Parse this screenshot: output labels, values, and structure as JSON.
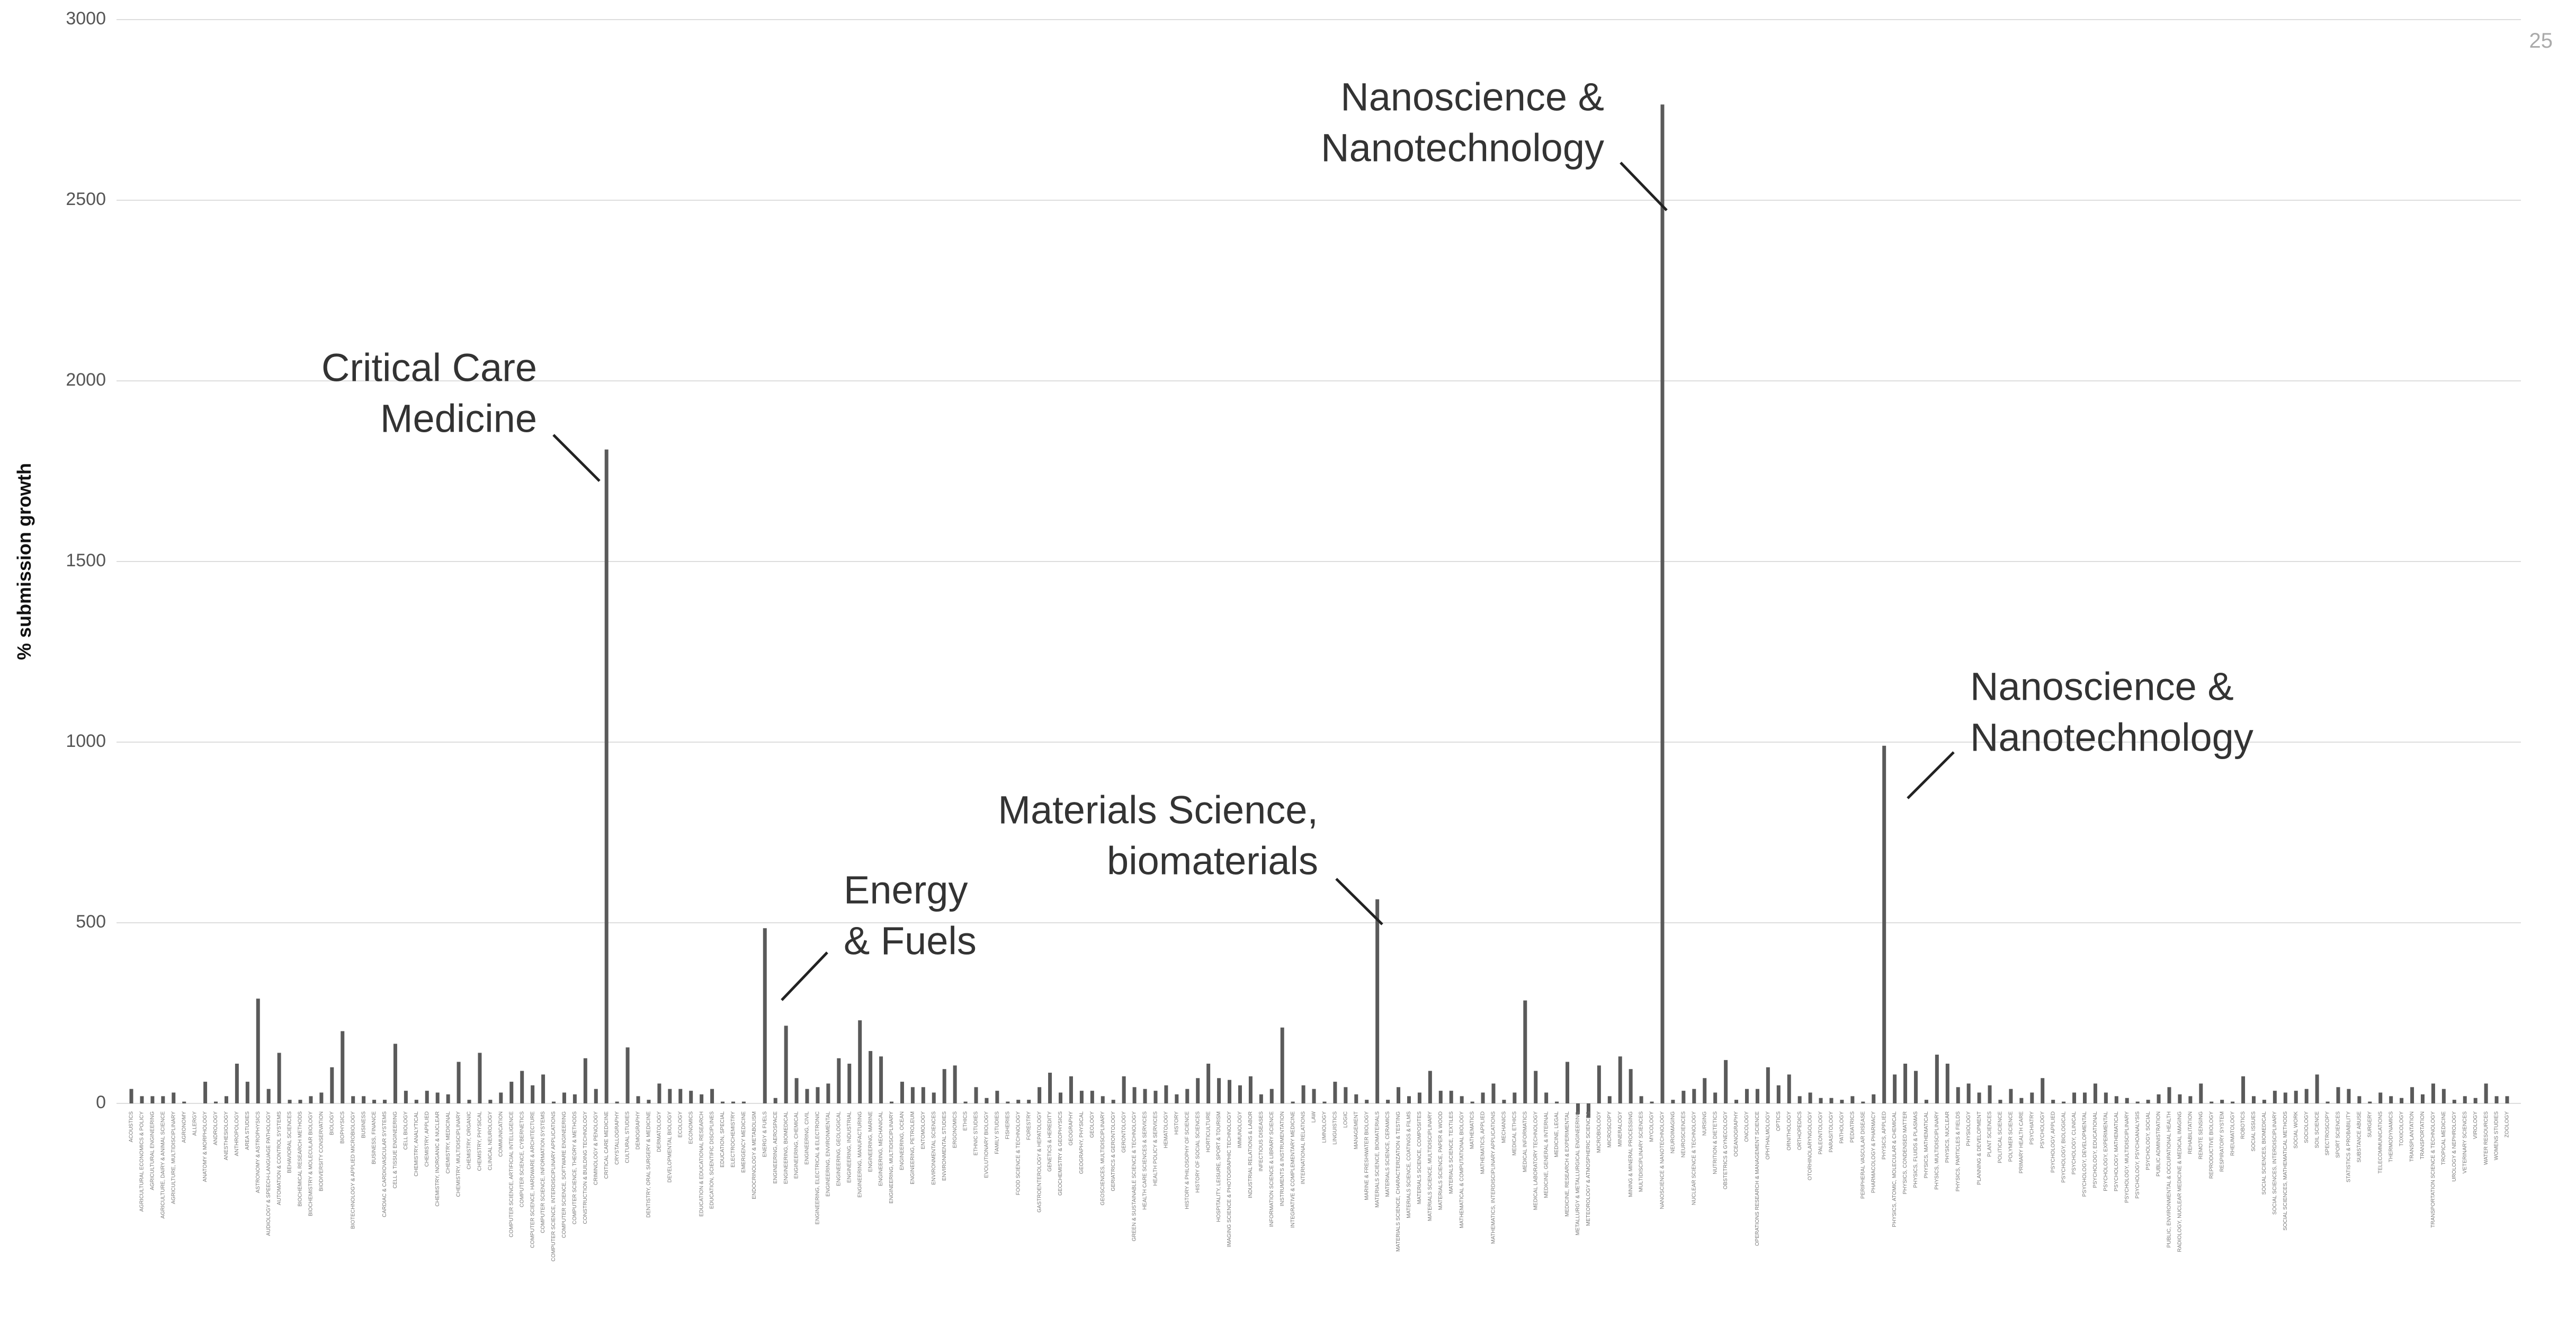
{
  "chart_data": {
    "type": "bar",
    "page_number": "25",
    "y_axis_label": "% submission growth",
    "color": "#5a5a5a",
    "grid": true,
    "ylim": [
      0,
      3000
    ],
    "yticks": [
      0,
      500,
      1000,
      1500,
      2000,
      2500,
      3000
    ],
    "annotations": [
      {
        "lines": [
          "Critical Care",
          "Medicine"
        ]
      },
      {
        "lines": [
          "Energy",
          "& Fuels"
        ]
      },
      {
        "lines": [
          "Materials Science,",
          "biomaterials"
        ]
      },
      {
        "lines": [
          "Nanoscience &",
          "Nanotechnology"
        ]
      },
      {
        "lines": [
          "Nanoscience &",
          "Nanotechnology"
        ]
      }
    ],
    "categories": [
      "ACOUSTICS",
      "AGRICULTURAL ECONOMICS & POLICY",
      "AGRICULTURAL ENGINEERING",
      "AGRICULTURE, DAIRY & ANIMAL SCIENCE",
      "AGRICULTURE, MULTIDISCIPLINARY",
      "AGRONOMY",
      "ALLERGY",
      "ANATOMY & MORPHOLOGY",
      "ANDROLOGY",
      "ANESTHESIOLOGY",
      "ANTHROPOLOGY",
      "AREA STUDIES",
      "ASTRONOMY & ASTROPHYSICS",
      "AUDIOLOGY & SPEECH-LANGUAGE PATHOLOGY",
      "AUTOMATION & CONTROL SYSTEMS",
      "BEHAVIORAL SCIENCES",
      "BIOCHEMICAL RESEARCH METHODS",
      "BIOCHEMISTRY & MOLECULAR BIOLOGY",
      "BIODIVERSITY CONSERVATION",
      "BIOLOGY",
      "BIOPHYSICS",
      "BIOTECHNOLOGY & APPLIED MICROBIOLOGY",
      "BUSINESS",
      "BUSINESS, FINANCE",
      "CARDIAC & CARDIOVASCULAR SYSTEMS",
      "CELL & TISSUE ENGINEERING",
      "CELL BIOLOGY",
      "CHEMISTRY, ANALYTICAL",
      "CHEMISTRY, APPLIED",
      "CHEMISTRY, INORGANIC & NUCLEAR",
      "CHEMISTRY, MEDICINAL",
      "CHEMISTRY, MULTIDISCIPLINARY",
      "CHEMISTRY, ORGANIC",
      "CHEMISTRY, PHYSICAL",
      "CLINICAL NEUROLOGY",
      "COMMUNICATION",
      "COMPUTER SCIENCE, ARTIFICIAL INTELLIGENCE",
      "COMPUTER SCIENCE, CYBERNETICS",
      "COMPUTER SCIENCE, HARDWARE & ARCHITECTURE",
      "COMPUTER SCIENCE, INFORMATION SYSTEMS",
      "COMPUTER SCIENCE, INTERDISCIPLINARY APPLICATIONS",
      "COMPUTER SCIENCE, SOFTWARE ENGINEERING",
      "COMPUTER SCIENCE, THEORY & METHODS",
      "CONSTRUCTION & BUILDING TECHNOLOGY",
      "CRIMINOLOGY & PENOLOGY",
      "CRITICAL CARE MEDICINE",
      "CRYSTALLOGRAPHY",
      "CULTURAL STUDIES",
      "DEMOGRAPHY",
      "DENTISTRY, ORAL SURGERY & MEDICINE",
      "DERMATOLOGY",
      "DEVELOPMENTAL BIOLOGY",
      "ECOLOGY",
      "ECONOMICS",
      "EDUCATION & EDUCATIONAL RESEARCH",
      "EDUCATION, SCIENTIFIC DISCIPLINES",
      "EDUCATION, SPECIAL",
      "ELECTROCHEMISTRY",
      "EMERGENCY MEDICINE",
      "ENDOCRINOLOGY & METABOLISM",
      "ENERGY & FUELS",
      "ENGINEERING, AEROSPACE",
      "ENGINEERING, BIOMEDICAL",
      "ENGINEERING, CHEMICAL",
      "ENGINEERING, CIVIL",
      "ENGINEERING, ELECTRICAL & ELECTRONIC",
      "ENGINEERING, ENVIRONMENTAL",
      "ENGINEERING, GEOLOGICAL",
      "ENGINEERING, INDUSTRIAL",
      "ENGINEERING, MANUFACTURING",
      "ENGINEERING, MARINE",
      "ENGINEERING, MECHANICAL",
      "ENGINEERING, MULTIDISCIPLINARY",
      "ENGINEERING, OCEAN",
      "ENGINEERING, PETROLEUM",
      "ENTOMOLOGY",
      "ENVIRONMENTAL SCIENCES",
      "ENVIRONMENTAL STUDIES",
      "ERGONOMICS",
      "ETHICS",
      "ETHNIC STUDIES",
      "EVOLUTIONARY BIOLOGY",
      "FAMILY STUDIES",
      "FISHERIES",
      "FOOD SCIENCE & TECHNOLOGY",
      "FORESTRY",
      "GASTROENTEROLOGY & HEPATOLOGY",
      "GENETICS & HEREDITY",
      "GEOCHEMISTRY & GEOPHYSICS",
      "GEOGRAPHY",
      "GEOGRAPHY, PHYSICAL",
      "GEOLOGY",
      "GEOSCIENCES, MULTIDISCIPLINARY",
      "GERIATRICS & GERONTOLOGY",
      "GERONTOLOGY",
      "GREEN & SUSTAINABLE SCIENCE & TECHNOLOGY",
      "HEALTH CARE SCIENCES & SERVICES",
      "HEALTH POLICY & SERVICES",
      "HEMATOLOGY",
      "HISTORY",
      "HISTORY & PHILOSOPHY OF SCIENCE",
      "HISTORY OF SOCIAL SCIENCES",
      "HORTICULTURE",
      "HOSPITALITY, LEISURE, SPORT & TOURISM",
      "IMAGING SCIENCE & PHOTOGRAPHIC TECHNOLOGY",
      "IMMUNOLOGY",
      "INDUSTRIAL RELATIONS & LABOR",
      "INFECTIOUS DISEASES",
      "INFORMATION SCIENCE & LIBRARY SCIENCE",
      "INSTRUMENTS & INSTRUMENTATION",
      "INTEGRATIVE & COMPLEMENTARY MEDICINE",
      "INTERNATIONAL RELATIONS",
      "LAW",
      "LIMNOLOGY",
      "LINGUISTICS",
      "LOGIC",
      "MANAGEMENT",
      "MARINE & FRESHWATER BIOLOGY",
      "MATERIALS SCIENCE, BIOMATERIALS",
      "MATERIALS SCIENCE, CERAMICS",
      "MATERIALS SCIENCE, CHARACTERIZATION & TESTING",
      "MATERIALS SCIENCE, COATINGS & FILMS",
      "MATERIALS SCIENCE, COMPOSITES",
      "MATERIALS SCIENCE, MULTIDISCIPLINARY",
      "MATERIALS SCIENCE, PAPER & WOOD",
      "MATERIALS SCIENCE, TEXTILES",
      "MATHEMATICAL & COMPUTATIONAL BIOLOGY",
      "MATHEMATICS",
      "MATHEMATICS, APPLIED",
      "MATHEMATICS, INTERDISCIPLINARY APPLICATIONS",
      "MECHANICS",
      "MEDICAL ETHICS",
      "MEDICAL INFORMATICS",
      "MEDICAL LABORATORY TECHNOLOGY",
      "MEDICINE, GENERAL & INTERNAL",
      "MEDICINE, LEGAL",
      "MEDICINE, RESEARCH & EXPERIMENTAL",
      "METALLURGY & METALLURGICAL ENGINEERING",
      "METEOROLOGY & ATMOSPHERIC SCIENCES",
      "MICROBIOLOGY",
      "MICROSCOPY",
      "MINERALOGY",
      "MINING & MINERAL PROCESSING",
      "MULTIDISCIPLINARY SCIENCES",
      "MYCOLOGY",
      "NANOSCIENCE & NANOTECHNOLOGY",
      "NEUROIMAGING",
      "NEUROSCIENCES",
      "NUCLEAR SCIENCE & TECHNOLOGY",
      "NURSING",
      "NUTRITION & DIETETICS",
      "OBSTETRICS & GYNECOLOGY",
      "OCEANOGRAPHY",
      "ONCOLOGY",
      "OPERATIONS RESEARCH & MANAGEMENT SCIENCE",
      "OPHTHALMOLOGY",
      "OPTICS",
      "ORNITHOLOGY",
      "ORTHOPEDICS",
      "OTORHINOLARYNGOLOGY",
      "PALEONTOLOGY",
      "PARASITOLOGY",
      "PATHOLOGY",
      "PEDIATRICS",
      "PERIPHERAL VASCULAR DISEASE",
      "PHARMACOLOGY & PHARMACY",
      "PHYSICS, APPLIED",
      "PHYSICS, ATOMIC, MOLECULAR & CHEMICAL",
      "PHYSICS, CONDENSED MATTER",
      "PHYSICS, FLUIDS & PLASMAS",
      "PHYSICS, MATHEMATICAL",
      "PHYSICS, MULTIDISCIPLINARY",
      "PHYSICS, NUCLEAR",
      "PHYSICS, PARTICLES & FIELDS",
      "PHYSIOLOGY",
      "PLANNING & DEVELOPMENT",
      "PLANT SCIENCES",
      "POLITICAL SCIENCE",
      "POLYMER SCIENCE",
      "PRIMARY HEALTH CARE",
      "PSYCHIATRY",
      "PSYCHOLOGY",
      "PSYCHOLOGY, APPLIED",
      "PSYCHOLOGY, BIOLOGICAL",
      "PSYCHOLOGY, CLINICAL",
      "PSYCHOLOGY, DEVELOPMENTAL",
      "PSYCHOLOGY, EDUCATIONAL",
      "PSYCHOLOGY, EXPERIMENTAL",
      "PSYCHOLOGY, MATHEMATICAL",
      "PSYCHOLOGY, MULTIDISCIPLINARY",
      "PSYCHOLOGY, PSYCHOANALYSIS",
      "PSYCHOLOGY, SOCIAL",
      "PUBLIC ADMINISTRATION",
      "PUBLIC, ENVIRONMENTAL & OCCUPATIONAL HEALTH",
      "RADIOLOGY, NUCLEAR MEDICINE & MEDICAL IMAGING",
      "REHABILITATION",
      "REMOTE SENSING",
      "REPRODUCTIVE BIOLOGY",
      "RESPIRATORY SYSTEM",
      "RHEUMATOLOGY",
      "ROBOTICS",
      "SOCIAL ISSUES",
      "SOCIAL SCIENCES, BIOMEDICAL",
      "SOCIAL SCIENCES, INTERDISCIPLINARY",
      "SOCIAL SCIENCES, MATHEMATICAL METHODS",
      "SOCIAL WORK",
      "SOCIOLOGY",
      "SOIL SCIENCE",
      "SPECTROSCOPY",
      "SPORT SCIENCES",
      "STATISTICS & PROBABILITY",
      "SUBSTANCE ABUSE",
      "SURGERY",
      "TELECOMMUNICATIONS",
      "THERMODYNAMICS",
      "TOXICOLOGY",
      "TRANSPLANTATION",
      "TRANSPORTATION",
      "TRANSPORTATION SCIENCE & TECHNOLOGY",
      "TROPICAL MEDICINE",
      "UROLOGY & NEPHROLOGY",
      "VETERINARY SCIENCES",
      "VIROLOGY",
      "WATER RESOURCES",
      "WOMENS STUDIES",
      "ZOOLOGY"
    ],
    "values": [
      40,
      20,
      20,
      20,
      30,
      5,
      0,
      60,
      5,
      20,
      110,
      60,
      290,
      40,
      140,
      10,
      10,
      20,
      30,
      100,
      200,
      20,
      20,
      10,
      10,
      165,
      35,
      10,
      35,
      30,
      25,
      115,
      10,
      140,
      10,
      30,
      60,
      90,
      50,
      80,
      5,
      30,
      25,
      125,
      40,
      1810,
      5,
      155,
      20,
      10,
      55,
      40,
      40,
      35,
      25,
      40,
      5,
      5,
      5,
      0,
      485,
      15,
      215,
      70,
      40,
      45,
      55,
      125,
      110,
      230,
      145,
      130,
      5,
      60,
      45,
      45,
      30,
      95,
      105,
      5,
      45,
      15,
      35,
      5,
      10,
      10,
      45,
      85,
      30,
      75,
      35,
      35,
      20,
      10,
      75,
      45,
      40,
      35,
      50,
      25,
      40,
      70,
      110,
      70,
      65,
      50,
      75,
      25,
      40,
      210,
      5,
      50,
      40,
      5,
      60,
      45,
      25,
      10,
      565,
      10,
      45,
      20,
      30,
      90,
      35,
      35,
      20,
      5,
      30,
      55,
      10,
      30,
      285,
      90,
      30,
      5,
      115,
      -30,
      -40,
      105,
      20,
      130,
      95,
      20,
      5,
      2765,
      10,
      35,
      40,
      70,
      30,
      120,
      10,
      40,
      40,
      100,
      50,
      80,
      20,
      30,
      15,
      15,
      10,
      20,
      5,
      25,
      990,
      80,
      110,
      90,
      10,
      135,
      110,
      45,
      55,
      30,
      50,
      10,
      40,
      15,
      30,
      70,
      10,
      5,
      30,
      30,
      55,
      30,
      20,
      15,
      5,
      10,
      25,
      45,
      25,
      20,
      55,
      5,
      10,
      5,
      75,
      20,
      10,
      35,
      30,
      35,
      40,
      80,
      5,
      45,
      40,
      20,
      5,
      30,
      20,
      15,
      45,
      25,
      55,
      40,
      10,
      20,
      15,
      55,
      20,
      20
    ]
  }
}
